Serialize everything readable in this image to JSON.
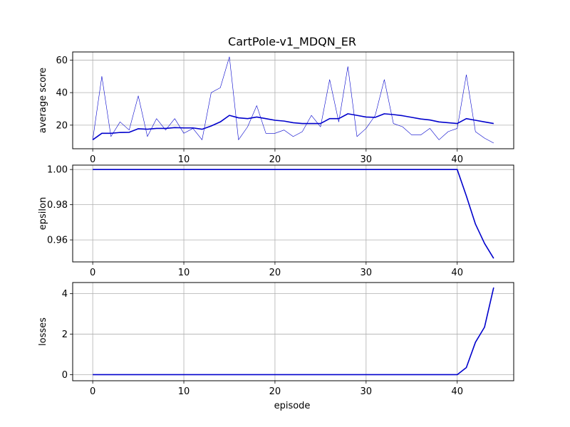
{
  "chart_data": [
    {
      "type": "line",
      "title": "CartPole-v1_MDQN_ER",
      "xlabel": "",
      "ylabel": "average score",
      "xlim": [
        -2.2,
        46.2
      ],
      "ylim": [
        5.5,
        65
      ],
      "xticks": [
        0,
        10,
        20,
        30,
        40
      ],
      "yticks": [
        20,
        40,
        60
      ],
      "grid": true,
      "series": [
        {
          "color": "#0000cc",
          "style": "thin",
          "x": [
            0,
            1,
            2,
            3,
            4,
            5,
            6,
            7,
            8,
            9,
            10,
            11,
            12,
            13,
            14,
            15,
            16,
            17,
            18,
            19,
            20,
            21,
            22,
            23,
            24,
            25,
            26,
            27,
            28,
            29,
            30,
            31,
            32,
            33,
            34,
            35,
            36,
            37,
            38,
            39,
            40,
            41,
            42,
            43,
            44
          ],
          "values": [
            11,
            50,
            13,
            22,
            17,
            38,
            13,
            24,
            17,
            24,
            15,
            18,
            11,
            40,
            43,
            62,
            11,
            19,
            32,
            15,
            15,
            17,
            13,
            16,
            26,
            19,
            48,
            22,
            56,
            13,
            18,
            26,
            48,
            21,
            19,
            14,
            14,
            18,
            11,
            16,
            18,
            51,
            16,
            12,
            9
          ]
        },
        {
          "color": "#0000cc",
          "style": "thick",
          "x": [
            0,
            1,
            2,
            3,
            4,
            5,
            6,
            7,
            8,
            9,
            10,
            11,
            12,
            13,
            14,
            15,
            16,
            17,
            18,
            19,
            20,
            21,
            22,
            23,
            24,
            25,
            26,
            27,
            28,
            29,
            30,
            31,
            32,
            33,
            34,
            35,
            36,
            37,
            38,
            39,
            40,
            41,
            42,
            43,
            44
          ],
          "values": [
            11,
            15,
            15,
            15.5,
            15.6,
            17.8,
            17.5,
            18,
            18,
            18.5,
            18.3,
            18.3,
            17.5,
            19.5,
            22,
            26,
            24.5,
            24,
            25,
            24,
            23,
            22.5,
            21.5,
            21,
            21,
            21,
            24,
            24,
            27,
            26,
            25,
            24.8,
            27,
            26.5,
            25.8,
            24.8,
            23.8,
            23.2,
            22,
            21.5,
            21,
            24,
            23,
            22,
            21
          ]
        }
      ]
    },
    {
      "type": "line",
      "title": "",
      "xlabel": "",
      "ylabel": "epsilon",
      "xlim": [
        -2.2,
        46.2
      ],
      "ylim": [
        0.9475,
        1.0025
      ],
      "xticks": [
        0,
        10,
        20,
        30,
        40
      ],
      "yticks": [
        0.96,
        0.98,
        1.0
      ],
      "ytick_labels": [
        "0.96",
        "0.98",
        "1.00"
      ],
      "grid": true,
      "series": [
        {
          "color": "#0000cc",
          "style": "thick",
          "x": [
            0,
            1,
            2,
            3,
            4,
            5,
            6,
            7,
            8,
            9,
            10,
            11,
            12,
            13,
            14,
            15,
            16,
            17,
            18,
            19,
            20,
            21,
            22,
            23,
            24,
            25,
            26,
            27,
            28,
            29,
            30,
            31,
            32,
            33,
            34,
            35,
            36,
            37,
            38,
            39,
            40,
            41,
            42,
            43,
            44
          ],
          "values": [
            1,
            1,
            1,
            1,
            1,
            1,
            1,
            1,
            1,
            1,
            1,
            1,
            1,
            1,
            1,
            1,
            1,
            1,
            1,
            1,
            1,
            1,
            1,
            1,
            1,
            1,
            1,
            1,
            1,
            1,
            1,
            1,
            1,
            1,
            1,
            1,
            1,
            1,
            1,
            1,
            1,
            0.985,
            0.969,
            0.958,
            0.9495
          ]
        }
      ]
    },
    {
      "type": "line",
      "title": "",
      "xlabel": "episode",
      "ylabel": "losses",
      "xlim": [
        -2.2,
        46.2
      ],
      "ylim": [
        -0.3,
        4.55
      ],
      "xticks": [
        0,
        10,
        20,
        30,
        40
      ],
      "yticks": [
        0,
        2,
        4
      ],
      "grid": true,
      "series": [
        {
          "color": "#0000cc",
          "style": "thick",
          "x": [
            0,
            1,
            2,
            3,
            4,
            5,
            6,
            7,
            8,
            9,
            10,
            11,
            12,
            13,
            14,
            15,
            16,
            17,
            18,
            19,
            20,
            21,
            22,
            23,
            24,
            25,
            26,
            27,
            28,
            29,
            30,
            31,
            32,
            33,
            34,
            35,
            36,
            37,
            38,
            39,
            40,
            41,
            42,
            43,
            44
          ],
          "values": [
            0,
            0,
            0,
            0,
            0,
            0,
            0,
            0,
            0,
            0,
            0,
            0,
            0,
            0,
            0,
            0,
            0,
            0,
            0,
            0,
            0,
            0,
            0,
            0,
            0,
            0,
            0,
            0,
            0,
            0,
            0,
            0,
            0,
            0,
            0,
            0,
            0,
            0,
            0,
            0,
            0,
            0.35,
            1.6,
            2.35,
            4.3
          ]
        }
      ]
    }
  ]
}
